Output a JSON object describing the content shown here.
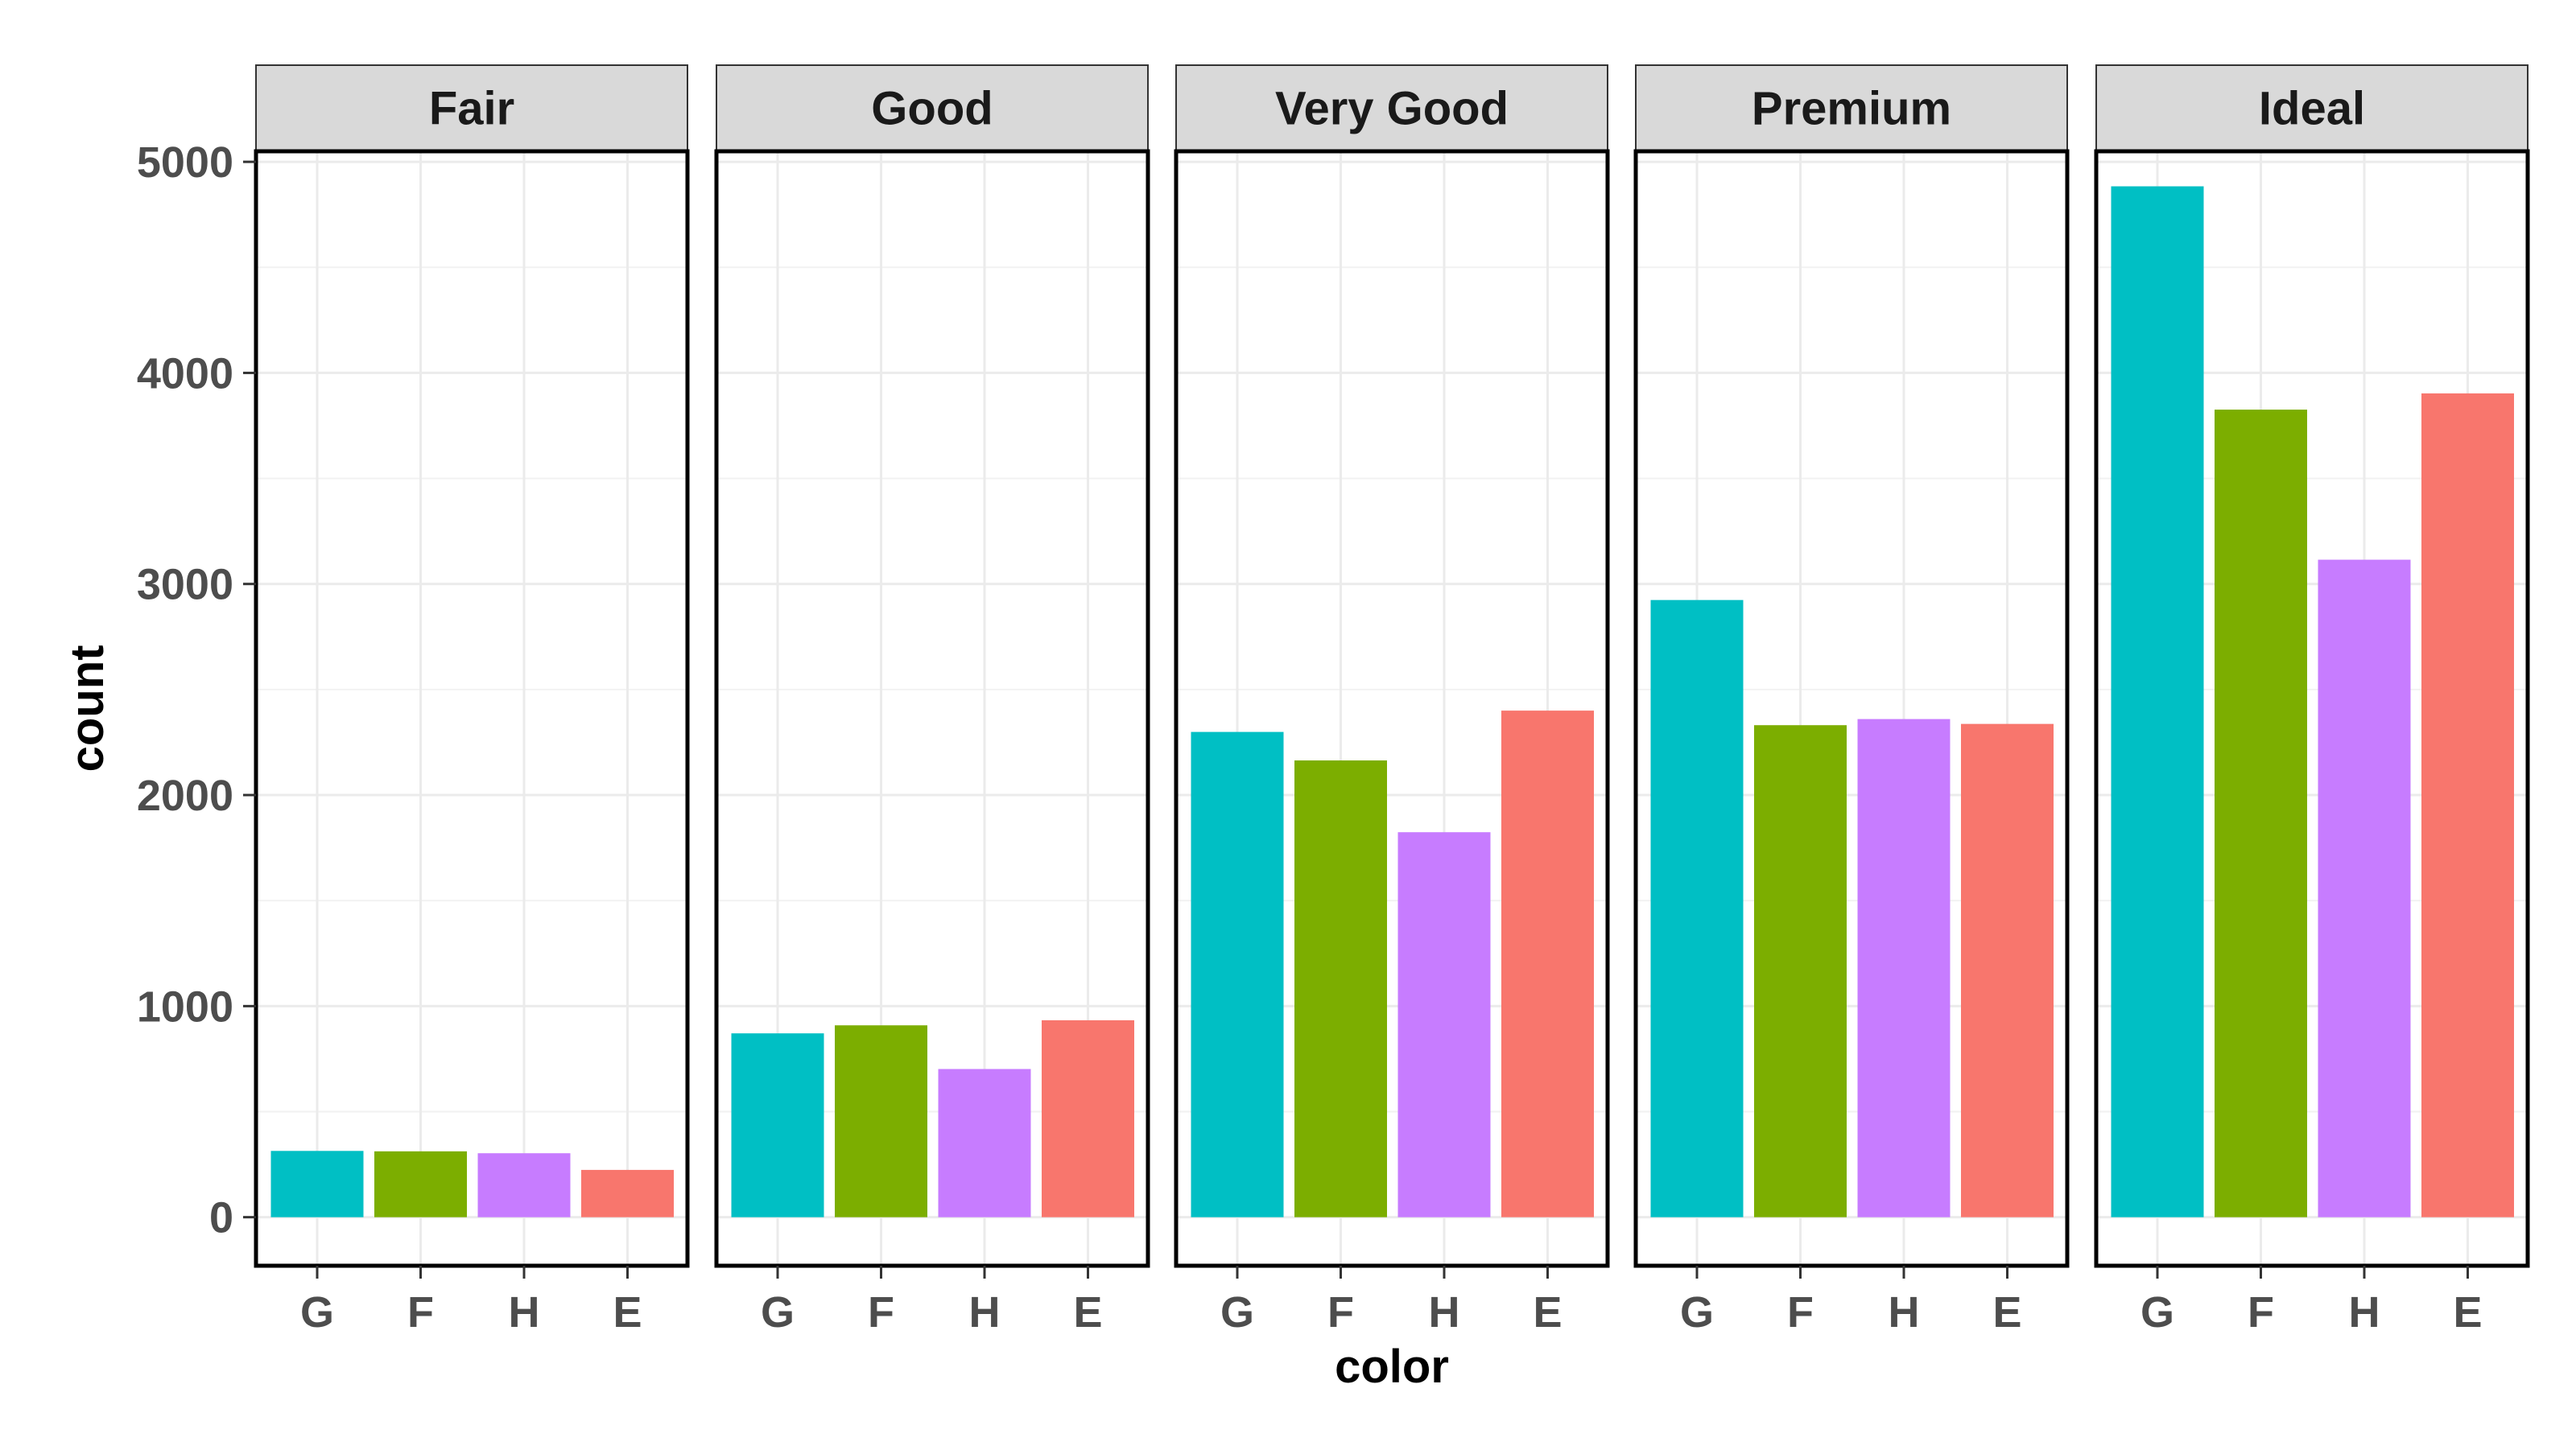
{
  "chart_data": {
    "type": "bar",
    "facet_by": "cut",
    "xlabel": "color",
    "ylabel": "count",
    "categories": [
      "G",
      "F",
      "H",
      "E"
    ],
    "category_colors": {
      "G": "#00BFC4",
      "F": "#7CAE00",
      "H": "#C77CFF",
      "E": "#F8766D"
    },
    "y_ticks": [
      0,
      1000,
      2000,
      3000,
      4000,
      5000
    ],
    "ylim": [
      -230,
      5050
    ],
    "grid": true,
    "legend": "none",
    "facets": [
      {
        "name": "Fair",
        "values": [
          314,
          312,
          303,
          224
        ]
      },
      {
        "name": "Good",
        "values": [
          871,
          909,
          702,
          933
        ]
      },
      {
        "name": "Very Good",
        "values": [
          2299,
          2164,
          1824,
          2400
        ]
      },
      {
        "name": "Premium",
        "values": [
          2924,
          2331,
          2360,
          2337
        ]
      },
      {
        "name": "Ideal",
        "values": [
          4884,
          3826,
          3115,
          3903
        ]
      }
    ]
  }
}
